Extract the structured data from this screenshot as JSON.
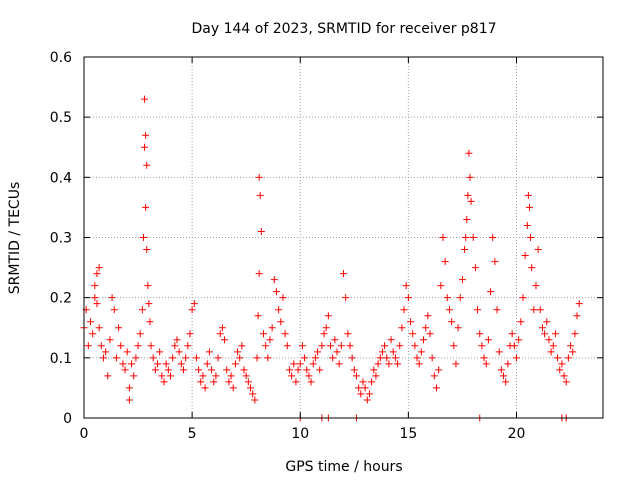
{
  "chart_data": {
    "type": "scatter",
    "title": "Day 144 of 2023, SRMTID for receiver p817",
    "xlabel": "GPS time / hours",
    "ylabel": "SRMTID / TECUs",
    "xlim": [
      0,
      24
    ],
    "ylim": [
      0,
      0.6
    ],
    "xticks": [
      0,
      5,
      10,
      15,
      20
    ],
    "yticks": [
      0,
      0.1,
      0.2,
      0.3,
      0.4,
      0.5,
      0.6
    ],
    "xtick_labels": [
      "0",
      "5",
      "10",
      "15",
      "20"
    ],
    "ytick_labels": [
      "0",
      "0.1",
      "0.2",
      "0.3",
      "0.4",
      "0.5",
      "0.6"
    ],
    "grid": true,
    "marker": "+",
    "series": [
      {
        "name": "SRMTID",
        "color": "#ff0000",
        "x": [
          0.0,
          0.1,
          0.2,
          0.3,
          0.4,
          0.5,
          0.5,
          0.6,
          0.6,
          0.7,
          0.7,
          0.8,
          0.9,
          1.0,
          1.1,
          1.2,
          1.3,
          1.4,
          1.5,
          1.6,
          1.7,
          1.8,
          1.9,
          2.0,
          2.1,
          2.1,
          2.2,
          2.3,
          2.4,
          2.5,
          2.6,
          2.7,
          2.75,
          2.8,
          2.8,
          2.85,
          2.85,
          2.9,
          2.9,
          2.95,
          3.0,
          3.05,
          3.1,
          3.2,
          3.3,
          3.4,
          3.5,
          3.6,
          3.7,
          3.8,
          3.9,
          4.0,
          4.1,
          4.2,
          4.3,
          4.4,
          4.5,
          4.6,
          4.7,
          4.8,
          4.9,
          5.0,
          5.1,
          5.2,
          5.3,
          5.4,
          5.5,
          5.6,
          5.7,
          5.8,
          5.9,
          6.0,
          6.1,
          6.2,
          6.3,
          6.4,
          6.5,
          6.6,
          6.7,
          6.8,
          6.9,
          7.0,
          7.1,
          7.2,
          7.3,
          7.4,
          7.5,
          7.6,
          7.7,
          7.8,
          7.9,
          8.0,
          8.05,
          8.1,
          8.1,
          8.15,
          8.2,
          8.3,
          8.4,
          8.5,
          8.6,
          8.7,
          8.8,
          8.9,
          9.0,
          9.1,
          9.2,
          9.3,
          9.4,
          9.5,
          9.6,
          9.7,
          9.8,
          9.9,
          10.0,
          10.1,
          10.2,
          10.3,
          10.4,
          10.5,
          10.6,
          10.7,
          10.8,
          10.9,
          11.0,
          11.1,
          11.2,
          11.3,
          11.4,
          11.5,
          11.6,
          11.7,
          11.8,
          11.9,
          12.0,
          12.1,
          12.2,
          12.3,
          12.4,
          12.5,
          12.6,
          12.7,
          12.8,
          12.9,
          13.0,
          13.1,
          13.2,
          13.3,
          13.4,
          13.5,
          13.6,
          13.7,
          13.8,
          13.9,
          14.0,
          14.1,
          14.2,
          14.3,
          14.4,
          14.5,
          14.6,
          14.7,
          14.8,
          14.9,
          15.0,
          15.1,
          15.2,
          15.3,
          15.4,
          15.5,
          15.6,
          15.7,
          15.8,
          15.9,
          16.0,
          16.1,
          16.2,
          16.3,
          16.4,
          16.5,
          16.6,
          16.7,
          16.8,
          16.9,
          17.0,
          17.1,
          17.2,
          17.3,
          17.4,
          17.5,
          17.6,
          17.65,
          17.7,
          17.75,
          17.8,
          17.85,
          17.9,
          18.0,
          18.1,
          18.2,
          18.3,
          18.4,
          18.5,
          18.6,
          18.7,
          18.8,
          18.9,
          19.0,
          19.1,
          19.2,
          19.3,
          19.4,
          19.5,
          19.6,
          19.7,
          19.8,
          19.9,
          20.0,
          20.1,
          20.2,
          20.3,
          20.4,
          20.5,
          20.55,
          20.6,
          20.65,
          20.7,
          20.8,
          20.9,
          21.0,
          21.1,
          21.2,
          21.3,
          21.4,
          21.5,
          21.6,
          21.7,
          21.8,
          21.9,
          22.0,
          22.1,
          22.2,
          22.3,
          22.4,
          22.5,
          22.6,
          22.7,
          22.8,
          22.9,
          10.0,
          11.0,
          11.3,
          12.6,
          18.3,
          22.1,
          22.3
        ],
        "y": [
          0.15,
          0.18,
          0.12,
          0.16,
          0.14,
          0.2,
          0.22,
          0.24,
          0.19,
          0.25,
          0.15,
          0.12,
          0.1,
          0.11,
          0.07,
          0.13,
          0.2,
          0.18,
          0.1,
          0.15,
          0.12,
          0.09,
          0.08,
          0.11,
          0.05,
          0.03,
          0.09,
          0.07,
          0.1,
          0.12,
          0.14,
          0.18,
          0.3,
          0.45,
          0.53,
          0.47,
          0.35,
          0.42,
          0.28,
          0.22,
          0.19,
          0.16,
          0.12,
          0.1,
          0.08,
          0.09,
          0.11,
          0.07,
          0.06,
          0.09,
          0.08,
          0.07,
          0.1,
          0.12,
          0.13,
          0.11,
          0.09,
          0.08,
          0.1,
          0.12,
          0.14,
          0.18,
          0.19,
          0.1,
          0.08,
          0.06,
          0.07,
          0.05,
          0.09,
          0.11,
          0.08,
          0.06,
          0.07,
          0.1,
          0.14,
          0.15,
          0.13,
          0.08,
          0.06,
          0.07,
          0.05,
          0.09,
          0.11,
          0.1,
          0.12,
          0.08,
          0.07,
          0.06,
          0.05,
          0.04,
          0.03,
          0.1,
          0.17,
          0.24,
          0.4,
          0.37,
          0.31,
          0.14,
          0.12,
          0.1,
          0.13,
          0.15,
          0.23,
          0.21,
          0.18,
          0.16,
          0.2,
          0.14,
          0.12,
          0.08,
          0.07,
          0.09,
          0.06,
          0.08,
          0.09,
          0.12,
          0.1,
          0.08,
          0.07,
          0.06,
          0.09,
          0.1,
          0.11,
          0.08,
          0.12,
          0.14,
          0.15,
          0.17,
          0.12,
          0.1,
          0.13,
          0.11,
          0.09,
          0.12,
          0.24,
          0.2,
          0.14,
          0.12,
          0.1,
          0.08,
          0.07,
          0.05,
          0.04,
          0.06,
          0.05,
          0.03,
          0.04,
          0.06,
          0.08,
          0.07,
          0.09,
          0.1,
          0.11,
          0.12,
          0.1,
          0.09,
          0.13,
          0.11,
          0.1,
          0.09,
          0.12,
          0.15,
          0.18,
          0.22,
          0.2,
          0.16,
          0.14,
          0.12,
          0.1,
          0.09,
          0.11,
          0.13,
          0.15,
          0.17,
          0.14,
          0.1,
          0.07,
          0.05,
          0.08,
          0.22,
          0.3,
          0.26,
          0.2,
          0.18,
          0.16,
          0.12,
          0.09,
          0.15,
          0.2,
          0.23,
          0.28,
          0.3,
          0.33,
          0.37,
          0.44,
          0.4,
          0.36,
          0.3,
          0.25,
          0.18,
          0.14,
          0.12,
          0.1,
          0.09,
          0.13,
          0.21,
          0.3,
          0.26,
          0.18,
          0.11,
          0.08,
          0.07,
          0.06,
          0.09,
          0.12,
          0.14,
          0.12,
          0.1,
          0.13,
          0.16,
          0.2,
          0.27,
          0.32,
          0.37,
          0.35,
          0.3,
          0.25,
          0.18,
          0.22,
          0.28,
          0.18,
          0.15,
          0.14,
          0.16,
          0.13,
          0.11,
          0.12,
          0.14,
          0.1,
          0.08,
          0.09,
          0.07,
          0.06,
          0.1,
          0.12,
          0.11,
          0.14,
          0.17,
          0.19,
          0.0,
          0.0,
          0.0,
          0.0,
          0.0,
          0.0,
          0.0
        ]
      }
    ]
  }
}
